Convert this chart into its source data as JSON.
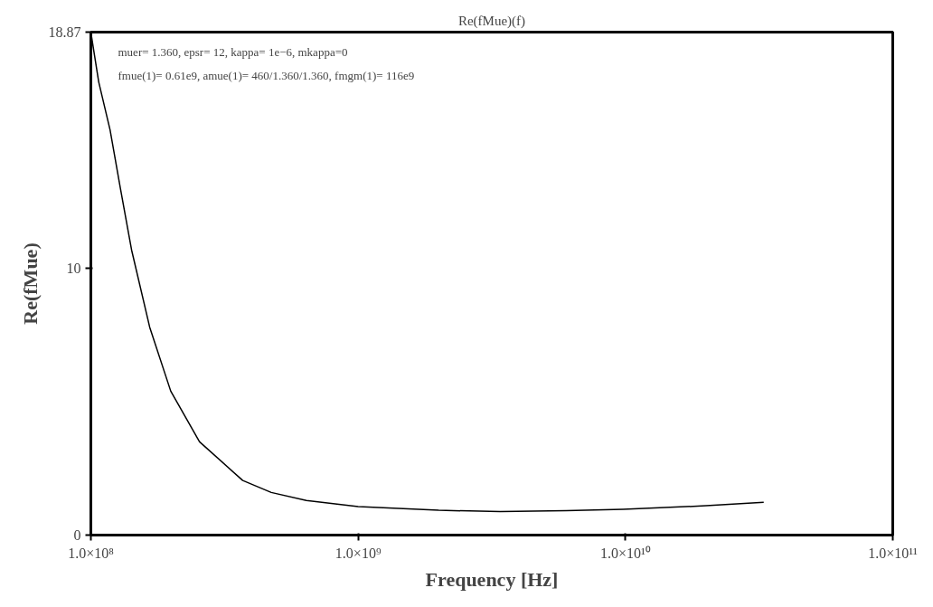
{
  "chart_data": {
    "type": "line",
    "title": "Re(fMue)(f)",
    "xlabel": "Frequency [Hz]",
    "ylabel": "Re(fMue)",
    "annotations": [
      "muer= 1.360, epsr= 12, kappa= 1e−6, mkappa=0",
      "fmue(1)= 0.61e9, amue(1)= 460/1.360/1.360, fmgm(1)= 116e9"
    ],
    "log": "x",
    "grid": false,
    "marker": "none",
    "line_style": "solid",
    "xlim": [
      100000000,
      100000000000
    ],
    "ylim": [
      0,
      18.87
    ],
    "xticks": [
      {
        "value": 100000000,
        "label": "1.0×10⁸"
      },
      {
        "value": 1000000000,
        "label": "1.0×10⁹"
      },
      {
        "value": 10000000000,
        "label": "1.0×10¹⁰"
      },
      {
        "value": 100000000000,
        "label": "1.0×10¹¹"
      }
    ],
    "yticks": [
      0,
      10,
      18.87
    ],
    "series": [
      {
        "color": "#000000",
        "x": [
          100000000,
          107000000,
          118000000,
          129000000,
          142000000,
          166000000,
          199000000,
          255000000,
          370000000,
          473000000,
          640000000,
          1000000000,
          2000000000,
          3400000000,
          6000000000,
          9800000000,
          20000000000,
          32900000000
        ],
        "values": [
          18.87,
          17.0,
          15.2,
          13.0,
          10.7,
          7.8,
          5.4,
          3.5,
          2.05,
          1.6,
          1.3,
          1.07,
          0.93,
          0.88,
          0.92,
          0.97,
          1.1,
          1.23
        ]
      }
    ]
  }
}
